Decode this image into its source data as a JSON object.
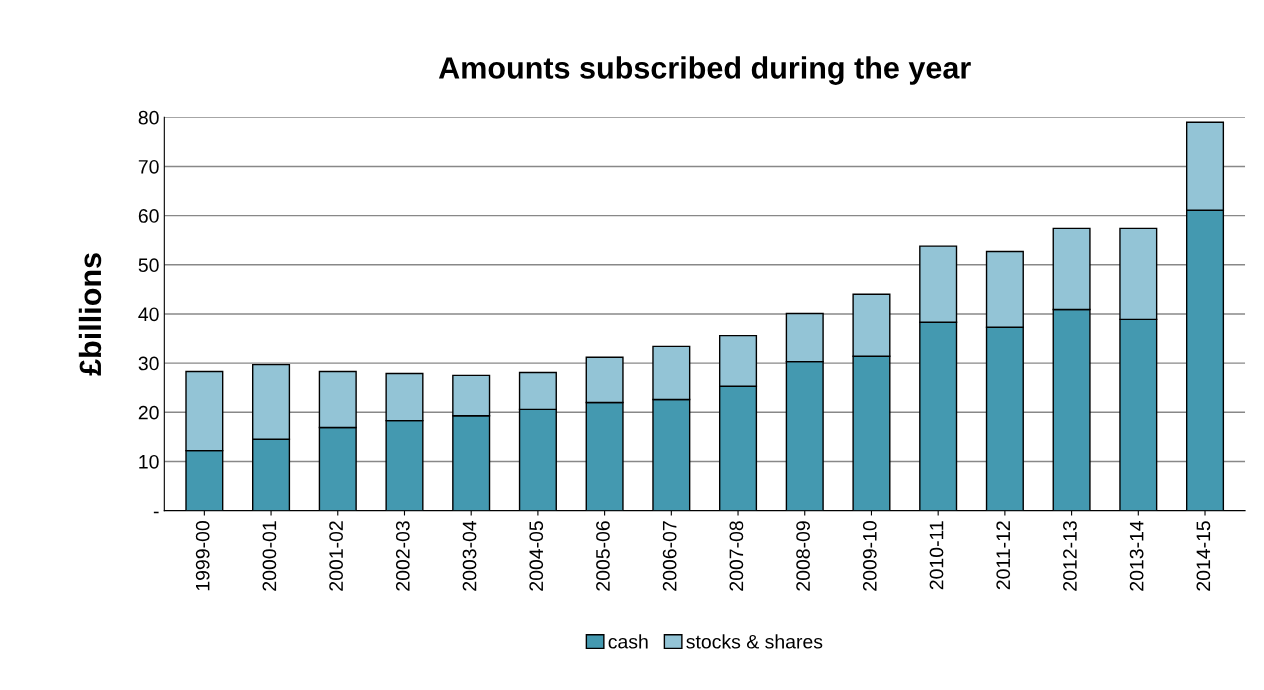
{
  "chart_data": {
    "type": "bar",
    "title": "Amounts subscribed during the year",
    "ylabel": "£billions",
    "categories": [
      "1999-00",
      "2000-01",
      "2001-02",
      "2002-03",
      "2003-04",
      "2004-05",
      "2005-06",
      "2006-07",
      "2007-08",
      "2008-09",
      "2009-10",
      "2010-11",
      "2011-12",
      "2012-13",
      "2013-14",
      "2014-15"
    ],
    "series": [
      {
        "name": "cash",
        "color": "#4499b0",
        "values": [
          12.2,
          14.5,
          16.9,
          18.3,
          19.3,
          20.6,
          22.0,
          22.6,
          25.3,
          30.3,
          31.4,
          38.3,
          37.3,
          40.9,
          38.9,
          61.1
        ]
      },
      {
        "name": "stocks & shares",
        "color": "#93c4d6",
        "values": [
          16.1,
          15.2,
          11.4,
          9.6,
          8.2,
          7.5,
          9.2,
          10.8,
          10.3,
          9.8,
          12.6,
          15.5,
          15.4,
          16.5,
          18.5,
          17.9
        ]
      }
    ],
    "stacked": true,
    "ylim": [
      0,
      80
    ],
    "yticks": [
      {
        "value": 0,
        "label": "-"
      },
      10,
      20,
      30,
      40,
      50,
      60,
      70,
      80
    ],
    "grid": "y",
    "legend": "bottom"
  }
}
